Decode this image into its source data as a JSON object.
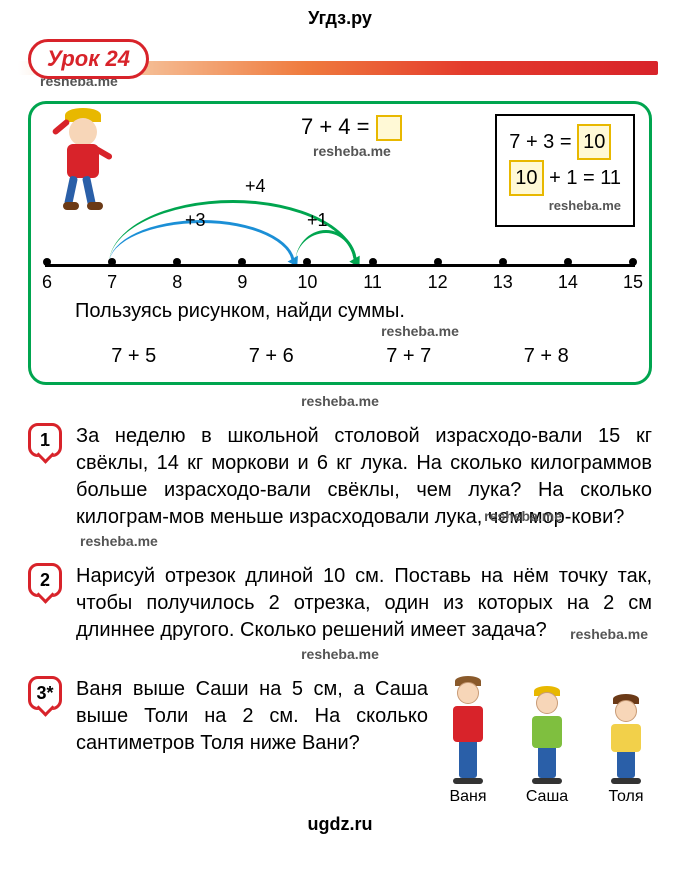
{
  "header": {
    "site_top": "Угдз.ру",
    "site_bottom": "ugdz.ru"
  },
  "lesson": {
    "label": "Урок 24"
  },
  "watermarks": {
    "w": "resheba.me"
  },
  "diagram": {
    "main_eq": "7 + 4 =",
    "side_line1_pre": "7 + 3 =",
    "side_line1_val": "10",
    "side_line2_val": "10",
    "side_line2_post": "+ 1 = 11",
    "arc_labels": {
      "a4": "+4",
      "a3": "+3",
      "a1": "+1"
    },
    "arc_colors": {
      "a4": "#00a54f",
      "a3": "#1b8fd6",
      "a1": "#00a54f"
    },
    "ticks": [
      "6",
      "7",
      "8",
      "9",
      "10",
      "11",
      "12",
      "13",
      "14",
      "15"
    ],
    "instruction": "Пользуясь рисунком, найди суммы.",
    "sums": [
      "7 + 5",
      "7 + 6",
      "7 + 7",
      "7 + 8"
    ]
  },
  "problems": {
    "p1": {
      "num": "1",
      "text": "За неделю в школьной столовой израсходо-вали 15 кг свёклы, 14 кг моркови и 6 кг лука. На сколько килограммов больше израсходо-вали свёклы, чем лука? На сколько килограм-мов меньше израсходовали лука, чем мор-кови?"
    },
    "p2": {
      "num": "2",
      "text": "Нарисуй отрезок длиной 10 см. Поставь на нём точку так, чтобы получилось 2 отрезка, один из которых на 2 см длиннее другого. Сколько решений имеет задача?"
    },
    "p3": {
      "num": "3*",
      "text": "Ваня выше Саши на 5 см, а Саша выше Толи на 2 см. На сколько сантиметров Толя ниже Вани?"
    }
  },
  "kids": {
    "k1": {
      "name": "Ваня",
      "hair": "#8a5a2b",
      "shirt": "#d8232a",
      "height_body": 36,
      "height_legs": 36
    },
    "k2": {
      "name": "Саша",
      "hair": "#e8b800",
      "shirt": "#7fbf3f",
      "height_body": 32,
      "height_legs": 30
    },
    "k3": {
      "name": "Толя",
      "hair": "#6b3a17",
      "shirt": "#f2d04a",
      "height_body": 28,
      "height_legs": 26
    }
  },
  "colors": {
    "accent_red": "#d8232a",
    "accent_green": "#00a54f",
    "box_border": "#e8b800",
    "box_fill": "#fff9d6"
  }
}
